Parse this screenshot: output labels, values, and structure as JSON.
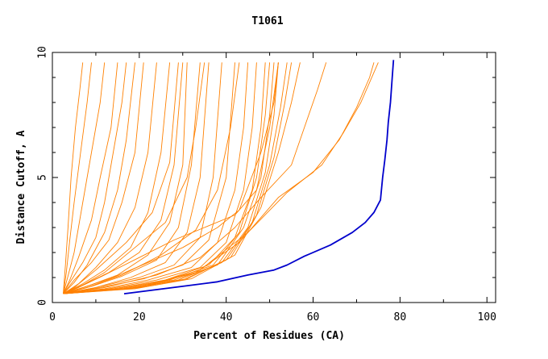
{
  "chart_data": {
    "type": "line",
    "title": "T1061",
    "xlabel": "Percent of Residues (CA)",
    "ylabel": "Distance Cutoff, A",
    "xlim": [
      0,
      102
    ],
    "ylim": [
      0,
      10
    ],
    "x_ticks": [
      "0",
      "20",
      "40",
      "60",
      "80",
      "100"
    ],
    "y_ticks": [
      "0",
      "5",
      "10"
    ],
    "grid": false,
    "legend": "none",
    "colors": {
      "others": "#ff8000",
      "highlight": "#0000cc"
    },
    "series": [
      {
        "points": [
          [
            16.5,
            0.35
          ],
          [
            30,
            0.65
          ],
          [
            38,
            0.83
          ],
          [
            45,
            1.1
          ],
          [
            51,
            1.3
          ],
          [
            54,
            1.5
          ],
          [
            58,
            1.85
          ],
          [
            64,
            2.3
          ],
          [
            69,
            2.8
          ],
          [
            72,
            3.2
          ],
          [
            74,
            3.6
          ],
          [
            75.5,
            4.1
          ],
          [
            76,
            5
          ],
          [
            76.5,
            5.7
          ],
          [
            77,
            6.5
          ],
          [
            77.3,
            7.2
          ],
          [
            77.8,
            8
          ],
          [
            78.2,
            9
          ],
          [
            78.5,
            9.7
          ]
        ]
      },
      {
        "points": [
          [
            2.5,
            0.35
          ],
          [
            3,
            1.5
          ],
          [
            3.6,
            3
          ],
          [
            4.3,
            5
          ],
          [
            5.3,
            7
          ],
          [
            6.3,
            8.5
          ],
          [
            7,
            9.6
          ]
        ]
      },
      {
        "points": [
          [
            2.5,
            0.35
          ],
          [
            3.2,
            1.2
          ],
          [
            4,
            2.5
          ],
          [
            5,
            4
          ],
          [
            6.5,
            6
          ],
          [
            8,
            8
          ],
          [
            9,
            9.6
          ]
        ]
      },
      {
        "points": [
          [
            2.5,
            0.35
          ],
          [
            3.5,
            1
          ],
          [
            5,
            2
          ],
          [
            7,
            4
          ],
          [
            9,
            6
          ],
          [
            11,
            8
          ],
          [
            12,
            9.6
          ]
        ]
      },
      {
        "points": [
          [
            2.5,
            0.35
          ],
          [
            4,
            0.9
          ],
          [
            6,
            1.8
          ],
          [
            9,
            3.3
          ],
          [
            11,
            5
          ],
          [
            13.5,
            7
          ],
          [
            15,
            9.6
          ]
        ]
      },
      {
        "points": [
          [
            2.5,
            0.35
          ],
          [
            5,
            0.8
          ],
          [
            8,
            1.5
          ],
          [
            12,
            2.8
          ],
          [
            15,
            4.5
          ],
          [
            17,
            6.5
          ],
          [
            19,
            9.6
          ]
        ]
      },
      {
        "points": [
          [
            2.5,
            0.35
          ],
          [
            5,
            0.9
          ],
          [
            9,
            1.6
          ],
          [
            13,
            2.5
          ],
          [
            16,
            4
          ],
          [
            19,
            6
          ],
          [
            21,
            9.6
          ]
        ]
      },
      {
        "points": [
          [
            2.5,
            0.35
          ],
          [
            6,
            0.75
          ],
          [
            10,
            1.4
          ],
          [
            15,
            2.4
          ],
          [
            19,
            3.8
          ],
          [
            22,
            6
          ],
          [
            24,
            9.6
          ]
        ]
      },
      {
        "points": [
          [
            2.5,
            0.35
          ],
          [
            7,
            0.75
          ],
          [
            12,
            1.3
          ],
          [
            18,
            2.2
          ],
          [
            22,
            3.6
          ],
          [
            25,
            6
          ],
          [
            27,
            9.6
          ]
        ]
      },
      {
        "points": [
          [
            2.5,
            0.35
          ],
          [
            7,
            0.7
          ],
          [
            13,
            1.2
          ],
          [
            20,
            2
          ],
          [
            25,
            3.3
          ],
          [
            28,
            5.5
          ],
          [
            30,
            9.6
          ]
        ]
      },
      {
        "points": [
          [
            2.5,
            0.35
          ],
          [
            8,
            0.65
          ],
          [
            15,
            1.1
          ],
          [
            22,
            1.9
          ],
          [
            27,
            3.2
          ],
          [
            30,
            5.5
          ],
          [
            31,
            9.6
          ]
        ]
      },
      {
        "points": [
          [
            2.5,
            0.35
          ],
          [
            9,
            0.65
          ],
          [
            16,
            1.05
          ],
          [
            24,
            1.7
          ],
          [
            29,
            3
          ],
          [
            32,
            5.5
          ],
          [
            34,
            9.6
          ]
        ]
      },
      {
        "points": [
          [
            2.5,
            0.35
          ],
          [
            10,
            0.6
          ],
          [
            18,
            1
          ],
          [
            26,
            1.6
          ],
          [
            31,
            2.8
          ],
          [
            34,
            5
          ],
          [
            36,
            9.6
          ]
        ]
      },
      {
        "points": [
          [
            2.5,
            0.35
          ],
          [
            10,
            0.6
          ],
          [
            20,
            1
          ],
          [
            28,
            1.5
          ],
          [
            34,
            2.6
          ],
          [
            37,
            5
          ],
          [
            39,
            9.6
          ]
        ]
      },
      {
        "points": [
          [
            2.5,
            0.35
          ],
          [
            11,
            0.6
          ],
          [
            21,
            0.95
          ],
          [
            30,
            1.5
          ],
          [
            36,
            2.5
          ],
          [
            40,
            5
          ],
          [
            42,
            9.6
          ]
        ]
      },
      {
        "points": [
          [
            2.5,
            0.35
          ],
          [
            12,
            0.55
          ],
          [
            22,
            0.9
          ],
          [
            32,
            1.4
          ],
          [
            38,
            2.4
          ],
          [
            42,
            4.5
          ],
          [
            44,
            7
          ],
          [
            45,
            9.6
          ]
        ]
      },
      {
        "points": [
          [
            2.5,
            0.35
          ],
          [
            13,
            0.55
          ],
          [
            24,
            0.9
          ],
          [
            34,
            1.4
          ],
          [
            40,
            2.4
          ],
          [
            44,
            4.5
          ],
          [
            46,
            7
          ],
          [
            47,
            9.6
          ]
        ]
      },
      {
        "points": [
          [
            2.5,
            0.35
          ],
          [
            14,
            0.55
          ],
          [
            26,
            0.9
          ],
          [
            36,
            1.5
          ],
          [
            42,
            2.6
          ],
          [
            46,
            4.5
          ],
          [
            48,
            7
          ],
          [
            49,
            9.6
          ]
        ]
      },
      {
        "points": [
          [
            2.5,
            0.35
          ],
          [
            15,
            0.55
          ],
          [
            27,
            0.9
          ],
          [
            37,
            1.5
          ],
          [
            43,
            2.8
          ],
          [
            47,
            5
          ],
          [
            49,
            7.5
          ],
          [
            50,
            9.6
          ]
        ]
      },
      {
        "points": [
          [
            2.5,
            0.35
          ],
          [
            16,
            0.55
          ],
          [
            28,
            0.9
          ],
          [
            38,
            1.5
          ],
          [
            44,
            3
          ],
          [
            48,
            5
          ],
          [
            50,
            7.5
          ],
          [
            51,
            9.6
          ]
        ]
      },
      {
        "points": [
          [
            2.5,
            0.35
          ],
          [
            17,
            0.55
          ],
          [
            29,
            0.9
          ],
          [
            39,
            1.6
          ],
          [
            45,
            3
          ],
          [
            49,
            5.2
          ],
          [
            51,
            7.5
          ],
          [
            52,
            9.6
          ]
        ]
      },
      {
        "points": [
          [
            2.5,
            0.35
          ],
          [
            17,
            0.55
          ],
          [
            30,
            0.9
          ],
          [
            40,
            1.7
          ],
          [
            46,
            3.2
          ],
          [
            50,
            5.5
          ],
          [
            52.5,
            7.8
          ],
          [
            54,
            9.6
          ]
        ]
      },
      {
        "points": [
          [
            2.5,
            0.35
          ],
          [
            18,
            0.55
          ],
          [
            31,
            0.95
          ],
          [
            41,
            1.8
          ],
          [
            47,
            3.5
          ],
          [
            51,
            5.8
          ],
          [
            53.5,
            8
          ],
          [
            55,
            9.6
          ]
        ]
      },
      {
        "points": [
          [
            2.5,
            0.35
          ],
          [
            19,
            0.55
          ],
          [
            32,
            0.95
          ],
          [
            42,
            1.9
          ],
          [
            48,
            3.8
          ],
          [
            52,
            6
          ],
          [
            55,
            8
          ],
          [
            57,
            9.6
          ]
        ]
      },
      {
        "points": [
          [
            2.5,
            0.35
          ],
          [
            7,
            0.6
          ],
          [
            14,
            1
          ],
          [
            22,
            1.6
          ],
          [
            30,
            2.2
          ],
          [
            38,
            3
          ],
          [
            43,
            3.7
          ],
          [
            48,
            6
          ],
          [
            51,
            8
          ],
          [
            52,
            9.6
          ]
        ]
      },
      {
        "points": [
          [
            2.5,
            0.35
          ],
          [
            6,
            0.6
          ],
          [
            12,
            1.1
          ],
          [
            20,
            1.8
          ],
          [
            28,
            2.5
          ],
          [
            35,
            3
          ],
          [
            42,
            3.5
          ],
          [
            47,
            4.5
          ],
          [
            50,
            7
          ],
          [
            52,
            9.6
          ]
        ]
      },
      {
        "points": [
          [
            2.5,
            0.35
          ],
          [
            4,
            0.8
          ],
          [
            7,
            1.6
          ],
          [
            10,
            2.6
          ],
          [
            12,
            4
          ],
          [
            14,
            6
          ],
          [
            16,
            8
          ],
          [
            17,
            9.6
          ]
        ]
      },
      {
        "points": [
          [
            2.5,
            0.35
          ],
          [
            5,
            0.6
          ],
          [
            10,
            1.3
          ],
          [
            17,
            2.4
          ],
          [
            23,
            3.6
          ],
          [
            27,
            5.6
          ],
          [
            29,
            9.6
          ]
        ]
      },
      {
        "points": [
          [
            2.5,
            0.35
          ],
          [
            6,
            0.6
          ],
          [
            12,
            1.2
          ],
          [
            19,
            2.2
          ],
          [
            26,
            3.2
          ],
          [
            31,
            5
          ],
          [
            33,
            7
          ],
          [
            35,
            9.6
          ]
        ]
      },
      {
        "points": [
          [
            2.5,
            0.35
          ],
          [
            8,
            0.6
          ],
          [
            16,
            1.1
          ],
          [
            25,
            1.9
          ],
          [
            33,
            2.9
          ],
          [
            38,
            4.5
          ],
          [
            41,
            7
          ],
          [
            43,
            9.6
          ]
        ]
      },
      {
        "points": [
          [
            2.5,
            0.35
          ],
          [
            12,
            0.6
          ],
          [
            24,
            1.1
          ],
          [
            34,
            1.8
          ],
          [
            42,
            3
          ],
          [
            48,
            4.2
          ],
          [
            55,
            5.5
          ],
          [
            58,
            7
          ],
          [
            61,
            8.5
          ],
          [
            63,
            9.6
          ]
        ]
      },
      {
        "points": [
          [
            2.5,
            0.35
          ],
          [
            20,
            0.6
          ],
          [
            33,
            1.2
          ],
          [
            43,
            2.4
          ],
          [
            52,
            4.2
          ],
          [
            60,
            5.2
          ],
          [
            66,
            6.5
          ],
          [
            70,
            7.8
          ],
          [
            73,
            9
          ],
          [
            74,
            9.6
          ]
        ]
      },
      {
        "points": [
          [
            2.5,
            0.35
          ],
          [
            20,
            0.6
          ],
          [
            34,
            1.3
          ],
          [
            45,
            2.8
          ],
          [
            54,
            4.4
          ],
          [
            62,
            5.5
          ],
          [
            67,
            6.8
          ],
          [
            71,
            8
          ],
          [
            74,
            9.2
          ],
          [
            75,
            9.6
          ]
        ]
      }
    ]
  }
}
